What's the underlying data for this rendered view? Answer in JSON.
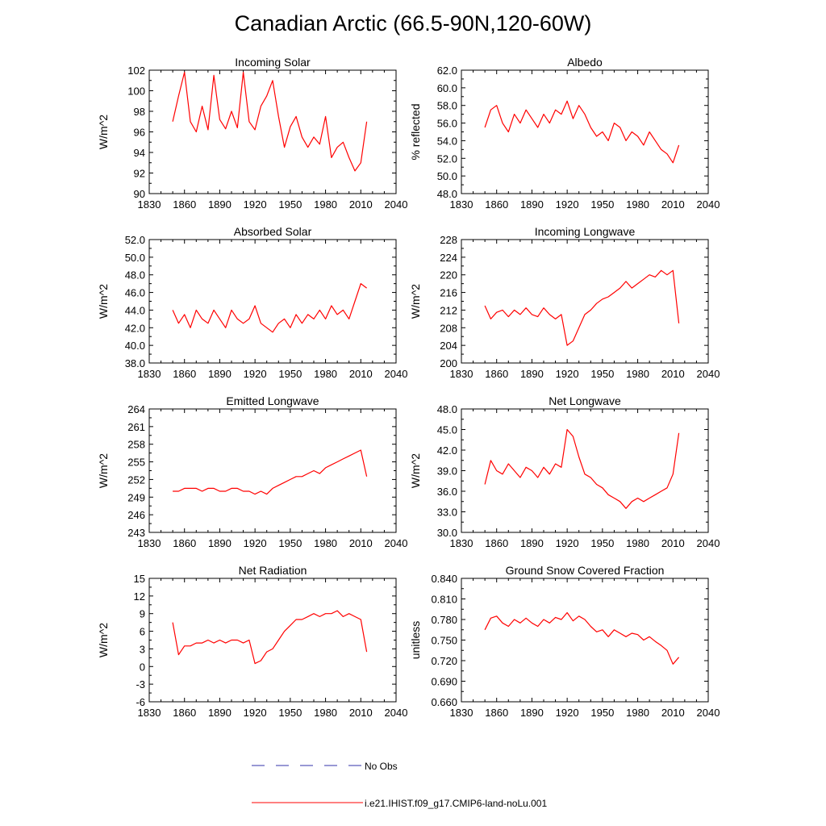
{
  "figure": {
    "title": "Canadian Arctic (66.5-90N,120-60W)"
  },
  "legend": {
    "entries": [
      {
        "label": "No Obs",
        "color": "#3333aa",
        "style": "dashed"
      },
      {
        "label": "i.e21.IHIST.f09_g17.CMIP6-land-noLu.001",
        "color": "#ff0000",
        "style": "solid"
      }
    ]
  },
  "chart_data": [
    {
      "type": "line",
      "title": "Incoming Solar",
      "xlabel": "",
      "ylabel": "W/m^2",
      "xlim": [
        1830,
        2040
      ],
      "ylim": [
        90,
        102
      ],
      "xticks": [
        "1830",
        "1860",
        "1890",
        "1920",
        "1950",
        "1980",
        "2010",
        "2040"
      ],
      "yticks": [
        "90",
        "92",
        "94",
        "96",
        "98",
        "100",
        "102"
      ],
      "series": [
        {
          "color": "#ff0000",
          "x_start": 1850,
          "x_step": 5,
          "values": [
            97.0,
            99.5,
            101.8,
            97.0,
            96.0,
            98.5,
            96.2,
            101.5,
            97.2,
            96.3,
            98.0,
            96.4,
            101.8,
            97.0,
            96.2,
            98.5,
            99.5,
            101.0,
            97.5,
            94.5,
            96.5,
            97.5,
            95.5,
            94.5,
            95.5,
            94.8,
            97.5,
            93.5,
            94.5,
            95.0,
            93.5,
            92.2,
            93.0,
            97.0
          ]
        }
      ]
    },
    {
      "type": "line",
      "title": "Albedo",
      "xlabel": "",
      "ylabel": "% reflected",
      "xlim": [
        1830,
        2040
      ],
      "ylim": [
        48.0,
        62.0
      ],
      "xticks": [
        "1830",
        "1860",
        "1890",
        "1920",
        "1950",
        "1980",
        "2010",
        "2040"
      ],
      "yticks": [
        "48.0",
        "50.0",
        "52.0",
        "54.0",
        "56.0",
        "58.0",
        "60.0",
        "62.0"
      ],
      "series": [
        {
          "color": "#ff0000",
          "x_start": 1850,
          "x_step": 5,
          "values": [
            55.5,
            57.5,
            58.0,
            56.0,
            55.0,
            57.0,
            56.0,
            57.5,
            56.5,
            55.5,
            57.0,
            56.0,
            57.5,
            57.0,
            58.5,
            56.5,
            58.0,
            57.0,
            55.5,
            54.5,
            55.0,
            54.0,
            56.0,
            55.5,
            54.0,
            55.0,
            54.5,
            53.5,
            55.0,
            54.0,
            53.0,
            52.5,
            51.5,
            53.5
          ]
        }
      ]
    },
    {
      "type": "line",
      "title": "Absorbed Solar",
      "xlabel": "",
      "ylabel": "W/m^2",
      "xlim": [
        1830,
        2040
      ],
      "ylim": [
        38.0,
        52.0
      ],
      "xticks": [
        "1830",
        "1860",
        "1890",
        "1920",
        "1950",
        "1980",
        "2010",
        "2040"
      ],
      "yticks": [
        "38.0",
        "40.0",
        "42.0",
        "44.0",
        "46.0",
        "48.0",
        "50.0",
        "52.0"
      ],
      "series": [
        {
          "color": "#ff0000",
          "x_start": 1850,
          "x_step": 5,
          "values": [
            44.0,
            42.5,
            43.5,
            42.0,
            44.0,
            43.0,
            42.5,
            44.0,
            43.0,
            42.0,
            44.0,
            43.0,
            42.5,
            43.0,
            44.5,
            42.5,
            42.0,
            41.5,
            42.5,
            43.0,
            42.0,
            43.5,
            42.5,
            43.5,
            43.0,
            44.0,
            43.0,
            44.5,
            43.5,
            44.0,
            43.0,
            45.0,
            47.0,
            46.5
          ]
        }
      ]
    },
    {
      "type": "line",
      "title": "Incoming Longwave",
      "xlabel": "",
      "ylabel": "W/m^2",
      "xlim": [
        1830,
        2040
      ],
      "ylim": [
        200,
        228
      ],
      "xticks": [
        "1830",
        "1860",
        "1890",
        "1920",
        "1950",
        "1980",
        "2010",
        "2040"
      ],
      "yticks": [
        "200",
        "204",
        "208",
        "212",
        "216",
        "220",
        "224",
        "228"
      ],
      "series": [
        {
          "color": "#ff0000",
          "x_start": 1850,
          "x_step": 5,
          "values": [
            213.0,
            210.0,
            211.5,
            212.0,
            210.5,
            212.0,
            211.0,
            212.5,
            211.0,
            210.5,
            212.5,
            211.0,
            210.0,
            211.0,
            204.0,
            205.0,
            208.0,
            211.0,
            212.0,
            213.5,
            214.5,
            215.0,
            216.0,
            217.0,
            218.5,
            217.0,
            218.0,
            219.0,
            220.0,
            219.5,
            221.0,
            220.0,
            221.0,
            209.0
          ]
        }
      ]
    },
    {
      "type": "line",
      "title": "Emitted Longwave",
      "xlabel": "",
      "ylabel": "W/m^2",
      "xlim": [
        1830,
        2040
      ],
      "ylim": [
        243,
        264
      ],
      "xticks": [
        "1830",
        "1860",
        "1890",
        "1920",
        "1950",
        "1980",
        "2010",
        "2040"
      ],
      "yticks": [
        "243",
        "246",
        "249",
        "252",
        "255",
        "258",
        "261",
        "264"
      ],
      "series": [
        {
          "color": "#ff0000",
          "x_start": 1850,
          "x_step": 5,
          "values": [
            250.0,
            250.0,
            250.5,
            250.5,
            250.5,
            250.0,
            250.5,
            250.5,
            250.0,
            250.0,
            250.5,
            250.5,
            250.0,
            250.0,
            249.5,
            250.0,
            249.5,
            250.5,
            251.0,
            251.5,
            252.0,
            252.5,
            252.5,
            253.0,
            253.5,
            253.0,
            254.0,
            254.5,
            255.0,
            255.5,
            256.0,
            256.5,
            257.0,
            252.5
          ]
        }
      ]
    },
    {
      "type": "line",
      "title": "Net Longwave",
      "xlabel": "",
      "ylabel": "W/m^2",
      "xlim": [
        1830,
        2040
      ],
      "ylim": [
        30.0,
        48.0
      ],
      "xticks": [
        "1830",
        "1860",
        "1890",
        "1920",
        "1950",
        "1980",
        "2010",
        "2040"
      ],
      "yticks": [
        "30.0",
        "33.0",
        "36.0",
        "39.0",
        "42.0",
        "45.0",
        "48.0"
      ],
      "series": [
        {
          "color": "#ff0000",
          "x_start": 1850,
          "x_step": 5,
          "values": [
            37.0,
            40.5,
            39.0,
            38.5,
            40.0,
            39.0,
            38.0,
            39.5,
            39.0,
            38.0,
            39.5,
            38.5,
            40.0,
            39.5,
            45.0,
            44.0,
            41.0,
            38.5,
            38.0,
            37.0,
            36.5,
            35.5,
            35.0,
            34.5,
            33.5,
            34.5,
            35.0,
            34.5,
            35.0,
            35.5,
            36.0,
            36.5,
            38.5,
            44.5
          ]
        }
      ]
    },
    {
      "type": "line",
      "title": "Net Radiation",
      "xlabel": "",
      "ylabel": "W/m^2",
      "xlim": [
        1830,
        2040
      ],
      "ylim": [
        -6,
        15
      ],
      "xticks": [
        "1830",
        "1860",
        "1890",
        "1920",
        "1950",
        "1980",
        "2010",
        "2040"
      ],
      "yticks": [
        "-6",
        "-3",
        "0",
        "3",
        "6",
        "9",
        "12",
        "15"
      ],
      "series": [
        {
          "color": "#ff0000",
          "x_start": 1850,
          "x_step": 5,
          "values": [
            7.5,
            2.0,
            3.5,
            3.5,
            4.0,
            4.0,
            4.5,
            4.0,
            4.5,
            4.0,
            4.5,
            4.5,
            4.0,
            4.5,
            0.5,
            1.0,
            2.5,
            3.0,
            4.5,
            6.0,
            7.0,
            8.0,
            8.0,
            8.5,
            9.0,
            8.5,
            9.0,
            9.0,
            9.5,
            8.5,
            9.0,
            8.5,
            8.0,
            2.5
          ]
        }
      ]
    },
    {
      "type": "line",
      "title": "Ground Snow Covered Fraction",
      "xlabel": "",
      "ylabel": "unitless",
      "xlim": [
        1830,
        2040
      ],
      "ylim": [
        0.66,
        0.84
      ],
      "xticks": [
        "1830",
        "1860",
        "1890",
        "1920",
        "1950",
        "1980",
        "2010",
        "2040"
      ],
      "yticks": [
        "0.660",
        "0.690",
        "0.720",
        "0.750",
        "0.780",
        "0.810",
        "0.840"
      ],
      "series": [
        {
          "color": "#ff0000",
          "x_start": 1850,
          "x_step": 5,
          "values": [
            0.765,
            0.782,
            0.785,
            0.775,
            0.77,
            0.78,
            0.775,
            0.782,
            0.775,
            0.77,
            0.78,
            0.775,
            0.783,
            0.78,
            0.79,
            0.778,
            0.785,
            0.78,
            0.77,
            0.762,
            0.765,
            0.755,
            0.765,
            0.76,
            0.755,
            0.76,
            0.758,
            0.75,
            0.755,
            0.748,
            0.742,
            0.735,
            0.715,
            0.725
          ]
        }
      ]
    }
  ]
}
